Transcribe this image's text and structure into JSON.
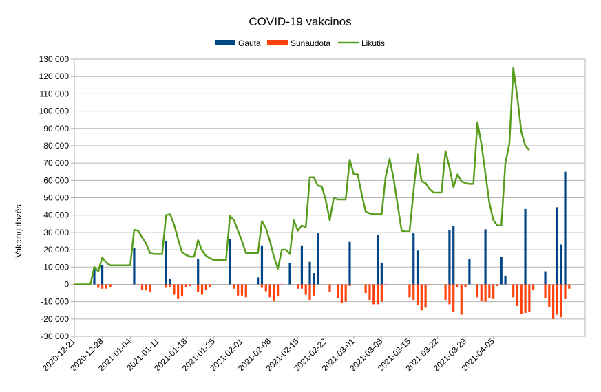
{
  "chart_data": {
    "type": "bar",
    "title": "COVID-19 vakcinos",
    "ylabel": "Vakcinų dozės",
    "xlabel": "",
    "ylim": [
      -30000,
      130000
    ],
    "ytick_step": 10000,
    "ytick_labels": [
      "-30 000",
      "-20 000",
      "-10 000",
      "0",
      "10 000",
      "20 000",
      "30 000",
      "40 000",
      "50 000",
      "60 000",
      "70 000",
      "80 000",
      "90 000",
      "100 000",
      "110 000",
      "120 000",
      "130 000"
    ],
    "x_start": "2020-12-21",
    "xtick_labels": [
      "2020-12-21",
      "2020-12-28",
      "2021-01-04",
      "2021-01-11",
      "2021-01-18",
      "2021-01-25",
      "2021-02-01",
      "2021-02-08",
      "2021-02-15",
      "2021-02-22",
      "2021-03-01",
      "2021-03-08",
      "2021-03-15",
      "2021-03-22",
      "2021-03-29",
      "2021-04-05"
    ],
    "legend_position": "top",
    "grid": "horizontal",
    "series": [
      {
        "name": "Gauta",
        "type": "bar",
        "color": "#004586",
        "values": [
          0,
          0,
          0,
          0,
          0,
          10000,
          0,
          11000,
          0,
          0,
          0,
          0,
          0,
          0,
          0,
          21000,
          0,
          0,
          0,
          0,
          0,
          0,
          0,
          25000,
          3000,
          0,
          0,
          0,
          0,
          0,
          0,
          14500,
          0,
          0,
          0,
          0,
          0,
          0,
          0,
          26000,
          0,
          0,
          0,
          0,
          0,
          0,
          4000,
          22500,
          0,
          0,
          0,
          0,
          0,
          0,
          12500,
          0,
          0,
          22500,
          0,
          13000,
          6500,
          29500,
          0,
          0,
          0,
          0,
          0,
          0,
          0,
          24500,
          0,
          0,
          0,
          0,
          0,
          0,
          28500,
          12500,
          0,
          0,
          0,
          0,
          0,
          0,
          0,
          29500,
          19500,
          0,
          0,
          0,
          0,
          0,
          0,
          0,
          31500,
          33700,
          0,
          0,
          0,
          14500,
          0,
          0,
          0,
          31800,
          0,
          0,
          0,
          16000,
          5000,
          0,
          0,
          0,
          0,
          43500,
          0,
          0,
          0,
          0,
          7500,
          0,
          0,
          44500,
          23000,
          65000,
          0,
          0,
          0,
          0,
          0
        ]
      },
      {
        "name": "Sunaudota",
        "type": "bar",
        "color": "#ff420e",
        "values": [
          0,
          0,
          0,
          0,
          0,
          0,
          -2000,
          -2500,
          -2500,
          -1500,
          0,
          0,
          0,
          0,
          0,
          0,
          -500,
          -3000,
          -3500,
          -4500,
          0,
          0,
          0,
          -2000,
          -1800,
          -6000,
          -8500,
          -7000,
          -1500,
          -1000,
          0,
          -4500,
          -6000,
          -3000,
          -1500,
          0,
          0,
          0,
          0,
          0,
          -2500,
          -6500,
          -6500,
          -7500,
          0,
          0,
          0,
          -2000,
          -4000,
          -7500,
          -9500,
          -7000,
          -500,
          0,
          0,
          0,
          -2500,
          -2500,
          -6000,
          -9000,
          -6500,
          0,
          0,
          0,
          -4500,
          0,
          -8000,
          -11000,
          -10000,
          -1000,
          0,
          0,
          0,
          -5000,
          -9000,
          -11500,
          -11500,
          -10000,
          -500,
          0,
          0,
          0,
          0,
          0,
          -7500,
          -9000,
          -12000,
          -15000,
          -13500,
          -500,
          0,
          0,
          0,
          -9000,
          -11500,
          -16000,
          -1500,
          -17500,
          -1500,
          0,
          0,
          -7500,
          -9500,
          -10000,
          -8000,
          -8500,
          -1000,
          0,
          0,
          0,
          -7500,
          -12500,
          -17000,
          -16500,
          -16000,
          -3000,
          0,
          0,
          -8000,
          -13000,
          -20000,
          -17500,
          -19000,
          -8500,
          -2500
        ]
      },
      {
        "name": "Likutis",
        "type": "line",
        "color": "#579d1c",
        "values": [
          0,
          0,
          0,
          0,
          0,
          10000,
          7500,
          15500,
          12500,
          11000,
          11000,
          11000,
          11000,
          11000,
          11000,
          31500,
          31000,
          27000,
          23500,
          18000,
          17500,
          17500,
          17500,
          40000,
          40500,
          34500,
          26000,
          18500,
          17000,
          16000,
          16000,
          25500,
          19500,
          16500,
          15000,
          14000,
          14000,
          14000,
          14000,
          39500,
          37000,
          31000,
          25000,
          18000,
          18000,
          18000,
          18000,
          36500,
          32500,
          25000,
          16000,
          9000,
          20000,
          20000,
          17500,
          37000,
          31000,
          34000,
          33000,
          61800,
          61800,
          57000,
          56500,
          48500,
          37000,
          50000,
          49000,
          49000,
          49000,
          72000,
          63500,
          63500,
          52000,
          42000,
          41000,
          40500,
          40500,
          40500,
          62000,
          72500,
          61000,
          46000,
          31000,
          30500,
          30500,
          54000,
          75000,
          59500,
          58500,
          55000,
          53000,
          53000,
          53000,
          77000,
          67500,
          56000,
          63500,
          59500,
          58500,
          58000,
          58000,
          93500,
          81000,
          64000,
          47000,
          37000,
          34000,
          34000,
          70000,
          81000,
          125000,
          108000,
          88000,
          80000,
          77500
        ]
      }
    ]
  }
}
